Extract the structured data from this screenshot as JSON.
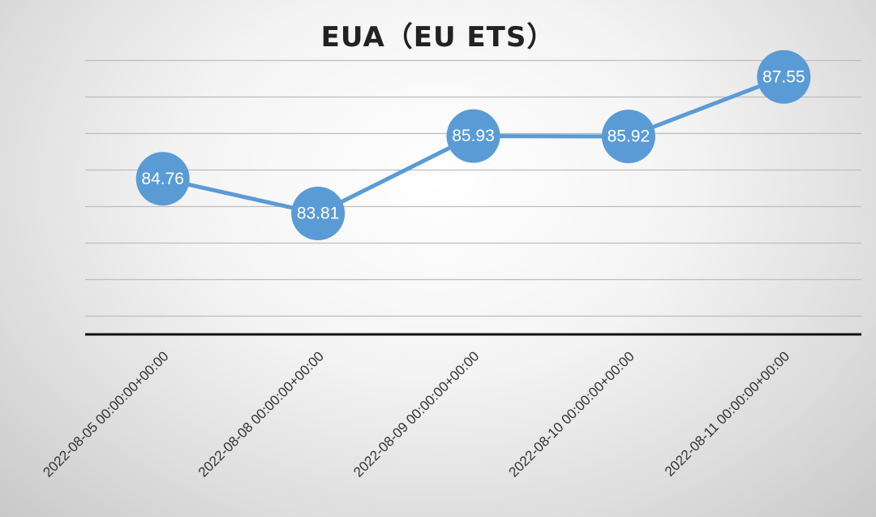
{
  "chart_data": {
    "type": "line",
    "title": "EUA（EU ETS）",
    "xlabel": "",
    "ylabel": "",
    "categories": [
      "2022-08-05 00:00:00+00:00",
      "2022-08-08 00:00:00+00:00",
      "2022-08-09 00:00:00+00:00",
      "2022-08-10 00:00:00+00:00",
      "2022-08-11 00:00:00+00:00"
    ],
    "series": [
      {
        "values": [
          84.76,
          83.81,
          85.93,
          85.92,
          87.55
        ]
      }
    ],
    "data_labels": [
      "84.76",
      "83.81",
      "85.93",
      "85.92",
      "87.55"
    ],
    "ylim": [
      80.5,
      88
    ],
    "y_gridlines": [
      81,
      82,
      83,
      84,
      85,
      86,
      87,
      88
    ],
    "grid": true,
    "legend": "none",
    "colors": {
      "series": "#5b9bd5",
      "grid": "#bdbdbd",
      "axis": "#111111"
    }
  }
}
